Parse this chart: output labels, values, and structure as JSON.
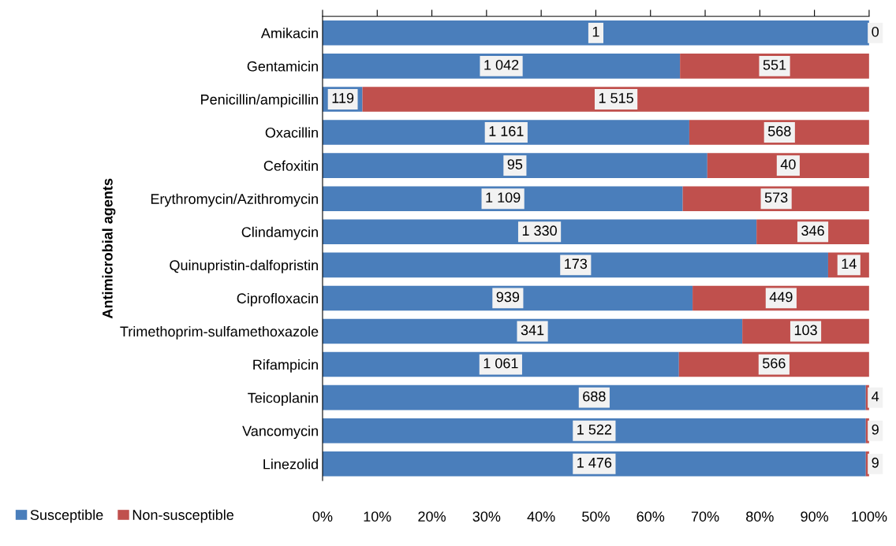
{
  "chart_data": {
    "type": "bar",
    "orientation": "horizontal",
    "stacked": true,
    "ylabel": "Antimicrobial agents",
    "categories": [
      "Amikacin",
      "Gentamicin",
      "Penicillin/ampicillin",
      "Oxacillin",
      "Cefoxitin",
      "Erythromycin/Azithromycin",
      "Clindamycin",
      "Quinupristin-dalfopristin",
      "Ciprofloxacin",
      "Trimethoprim-sulfamethoxazole",
      "Rifampicin",
      "Teicoplanin",
      "Vancomycin",
      "Linezolid"
    ],
    "series": [
      {
        "name": "Susceptible",
        "color": "#4a7ebb",
        "values": [
          100,
          65.4,
          7.3,
          67.1,
          70.4,
          65.9,
          79.4,
          92.5,
          67.7,
          76.8,
          65.2,
          99.4,
          99.4,
          99.4
        ]
      },
      {
        "name": "Non-susceptible",
        "color": "#c0504d",
        "values": [
          null,
          34.6,
          92.7,
          32.9,
          29.6,
          34.1,
          20.6,
          7.5,
          32.3,
          23.2,
          34.8,
          0.6,
          0.6,
          0.6
        ]
      }
    ],
    "annotations": [
      {
        "text": "1",
        "x": 50,
        "y": "Amikacin"
      },
      {
        "text": "0",
        "x": 100,
        "y": "Amikacin"
      },
      {
        "text": "1 042",
        "x": 32.7,
        "y": "Gentamicin"
      },
      {
        "text": "551",
        "x": 82.7,
        "y": "Gentamicin"
      },
      {
        "text": "119",
        "x": 3.7,
        "y": "Penicillin/ampicillin"
      },
      {
        "text": "1 515",
        "x": 53.7,
        "y": "Penicillin/ampicillin"
      },
      {
        "text": "1 161",
        "x": 33.6,
        "y": "Oxacillin"
      },
      {
        "text": "568",
        "x": 83.6,
        "y": "Oxacillin"
      },
      {
        "text": "95",
        "x": 35.2,
        "y": "Cefoxitin"
      },
      {
        "text": "40",
        "x": 85.2,
        "y": "Cefoxitin"
      },
      {
        "text": "1 109",
        "x": 33,
        "y": "Erythromycin/Azithromycin"
      },
      {
        "text": "573",
        "x": 83,
        "y": "Erythromycin/Azithromycin"
      },
      {
        "text": "1 330",
        "x": 39.7,
        "y": "Clindamycin"
      },
      {
        "text": "346",
        "x": 89.7,
        "y": "Clindamycin"
      },
      {
        "text": "173",
        "x": 46.3,
        "y": "Quinupristin-dalfopristin"
      },
      {
        "text": "14",
        "x": 96.3,
        "y": "Quinupristin-dalfopristin"
      },
      {
        "text": "939",
        "x": 33.9,
        "y": "Ciprofloxacin"
      },
      {
        "text": "449",
        "x": 83.9,
        "y": "Ciprofloxacin"
      },
      {
        "text": "341",
        "x": 38.4,
        "y": "Trimethoprim-sulfamethoxazole"
      },
      {
        "text": "103",
        "x": 88.4,
        "y": "Trimethoprim-sulfamethoxazole"
      },
      {
        "text": "1 061",
        "x": 32.6,
        "y": "Rifampicin"
      },
      {
        "text": "566",
        "x": 82.6,
        "y": "Rifampicin"
      },
      {
        "text": "688",
        "x": 49.7,
        "y": "Teicoplanin"
      },
      {
        "text": "4",
        "x": 100,
        "y": "Teicoplanin"
      },
      {
        "text": "1 522",
        "x": 49.7,
        "y": "Vancomycin"
      },
      {
        "text": "9",
        "x": 100,
        "y": "Vancomycin"
      },
      {
        "text": "1 476",
        "x": 49.7,
        "y": "Linezolid"
      },
      {
        "text": "9",
        "x": 100,
        "y": "Linezolid"
      }
    ],
    "xlim": [
      0,
      100
    ],
    "xticks": [
      {
        "value": 0,
        "label": "0%"
      },
      {
        "value": 10,
        "label": "10%"
      },
      {
        "value": 20,
        "label": "20%"
      },
      {
        "value": 30,
        "label": "30%"
      },
      {
        "value": 40,
        "label": "40%"
      },
      {
        "value": 50,
        "label": "50%"
      },
      {
        "value": 60,
        "label": "60%"
      },
      {
        "value": 70,
        "label": "70%"
      },
      {
        "value": 80,
        "label": "80%"
      },
      {
        "value": 90,
        "label": "90%"
      },
      {
        "value": 100,
        "label": "100%"
      }
    ],
    "grid": false,
    "legend": "bottom left"
  }
}
